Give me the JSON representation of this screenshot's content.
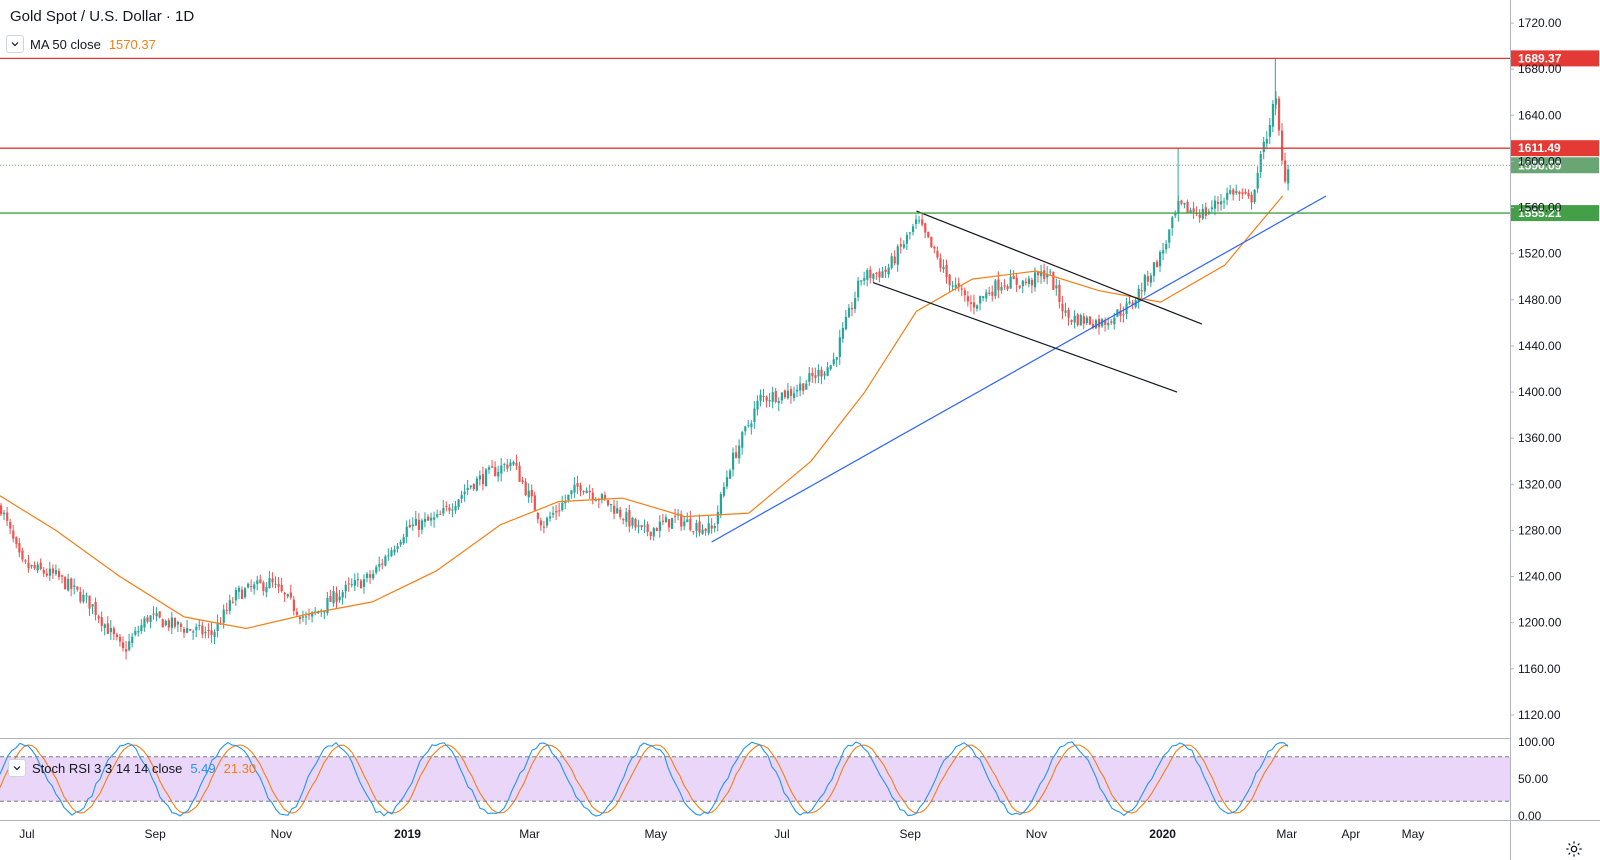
{
  "header": {
    "title": "Gold Spot / U.S. Dollar · 1D",
    "ma_label": "MA 50 close",
    "ma_value": "1570.37"
  },
  "stoch": {
    "label": "Stoch RSI 3 3 14 14 close",
    "k_value": "5.49",
    "d_value": "21.30",
    "ticks": [
      "100.00",
      "50.00",
      "0.00"
    ]
  },
  "colors": {
    "up": "#26a69a",
    "down": "#ef5350",
    "ma": "#f57f17",
    "resistance": "#e53935",
    "support": "#43a047",
    "trendline": "#2962ff",
    "channel": "#131722",
    "current": "#6aa574",
    "stoch_k": "#2196f3",
    "stoch_d": "#f57f17",
    "stoch_band": "#e1c8f5"
  },
  "chart_data": {
    "type": "candlestick",
    "title": "Gold Spot / U.S. Dollar · 1D",
    "ylim": [
      1100,
      1740
    ],
    "y_ticks": [
      1120,
      1160,
      1200,
      1240,
      1280,
      1320,
      1360,
      1400,
      1440,
      1480,
      1520,
      1560,
      1600,
      1640,
      1680,
      1720
    ],
    "x_labels": [
      "Jul",
      "Sep",
      "Nov",
      "2019",
      "Mar",
      "May",
      "Jul",
      "Sep",
      "Nov",
      "2020",
      "Mar",
      "Apr",
      "May"
    ],
    "horizontal_lines": [
      {
        "value": 1689.37,
        "label": "1689.37",
        "color": "#e53935"
      },
      {
        "value": 1611.49,
        "label": "1611.49",
        "color": "#e53935"
      },
      {
        "value": 1596.69,
        "label": "1596.69",
        "color": "#6aa574",
        "style": "dotted"
      },
      {
        "value": 1555.21,
        "label": "1555.21",
        "color": "#43a047"
      }
    ],
    "trendlines": [
      {
        "name": "uptrend",
        "color": "#2962ff",
        "from": [
          "2019-05-28",
          1270
        ],
        "to": [
          "2020-03-20",
          1570
        ]
      },
      {
        "name": "channel-top",
        "color": "#131722",
        "from": [
          "2019-09-04",
          1557
        ],
        "to": [
          "2020-01-20",
          1459
        ]
      },
      {
        "name": "channel-bottom",
        "color": "#131722",
        "from": [
          "2019-08-14",
          1495
        ],
        "to": [
          "2020-01-08",
          1400
        ]
      }
    ],
    "price_path": [
      [
        "2018-06-18",
        1300
      ],
      [
        "2018-06-28",
        1250
      ],
      [
        "2018-07-15",
        1240
      ],
      [
        "2018-08-01",
        1215
      ],
      [
        "2018-08-16",
        1175
      ],
      [
        "2018-08-28",
        1205
      ],
      [
        "2018-09-15",
        1195
      ],
      [
        "2018-09-28",
        1190
      ],
      [
        "2018-10-10",
        1225
      ],
      [
        "2018-10-26",
        1235
      ],
      [
        "2018-11-13",
        1202
      ],
      [
        "2018-11-28",
        1225
      ],
      [
        "2018-12-14",
        1240
      ],
      [
        "2018-12-31",
        1282
      ],
      [
        "2019-01-15",
        1290
      ],
      [
        "2019-01-31",
        1320
      ],
      [
        "2019-02-20",
        1340
      ],
      [
        "2019-03-07",
        1285
      ],
      [
        "2019-03-25",
        1320
      ],
      [
        "2019-04-10",
        1300
      ],
      [
        "2019-04-24",
        1278
      ],
      [
        "2019-05-10",
        1290
      ],
      [
        "2019-05-28",
        1280
      ],
      [
        "2019-06-05",
        1335
      ],
      [
        "2019-06-20",
        1395
      ],
      [
        "2019-07-05",
        1400
      ],
      [
        "2019-07-25",
        1425
      ],
      [
        "2019-08-08",
        1500
      ],
      [
        "2019-08-20",
        1505
      ],
      [
        "2019-09-04",
        1548
      ],
      [
        "2019-09-18",
        1500
      ],
      [
        "2019-09-30",
        1475
      ],
      [
        "2019-10-14",
        1495
      ],
      [
        "2019-10-28",
        1495
      ],
      [
        "2019-11-06",
        1505
      ],
      [
        "2019-11-15",
        1465
      ],
      [
        "2019-12-02",
        1460
      ],
      [
        "2019-12-16",
        1475
      ],
      [
        "2019-12-31",
        1520
      ],
      [
        "2020-01-08",
        1560
      ],
      [
        "2020-01-21",
        1555
      ],
      [
        "2020-02-03",
        1575
      ],
      [
        "2020-02-12",
        1565
      ],
      [
        "2020-02-24",
        1655
      ],
      [
        "2020-02-28",
        1585
      ],
      [
        "2020-03-02",
        1597
      ]
    ],
    "ma_path": [
      [
        "2018-06-18",
        1310
      ],
      [
        "2018-07-15",
        1280
      ],
      [
        "2018-08-15",
        1240
      ],
      [
        "2018-09-15",
        1205
      ],
      [
        "2018-10-15",
        1195
      ],
      [
        "2018-11-15",
        1208
      ],
      [
        "2018-12-15",
        1218
      ],
      [
        "2019-01-15",
        1245
      ],
      [
        "2019-02-15",
        1285
      ],
      [
        "2019-03-15",
        1305
      ],
      [
        "2019-04-15",
        1308
      ],
      [
        "2019-05-15",
        1292
      ],
      [
        "2019-06-15",
        1295
      ],
      [
        "2019-07-15",
        1340
      ],
      [
        "2019-08-10",
        1400
      ],
      [
        "2019-09-04",
        1470
      ],
      [
        "2019-10-01",
        1498
      ],
      [
        "2019-11-01",
        1505
      ],
      [
        "2019-12-01",
        1488
      ],
      [
        "2019-12-31",
        1478
      ],
      [
        "2020-01-31",
        1510
      ],
      [
        "2020-02-28",
        1570
      ]
    ]
  }
}
